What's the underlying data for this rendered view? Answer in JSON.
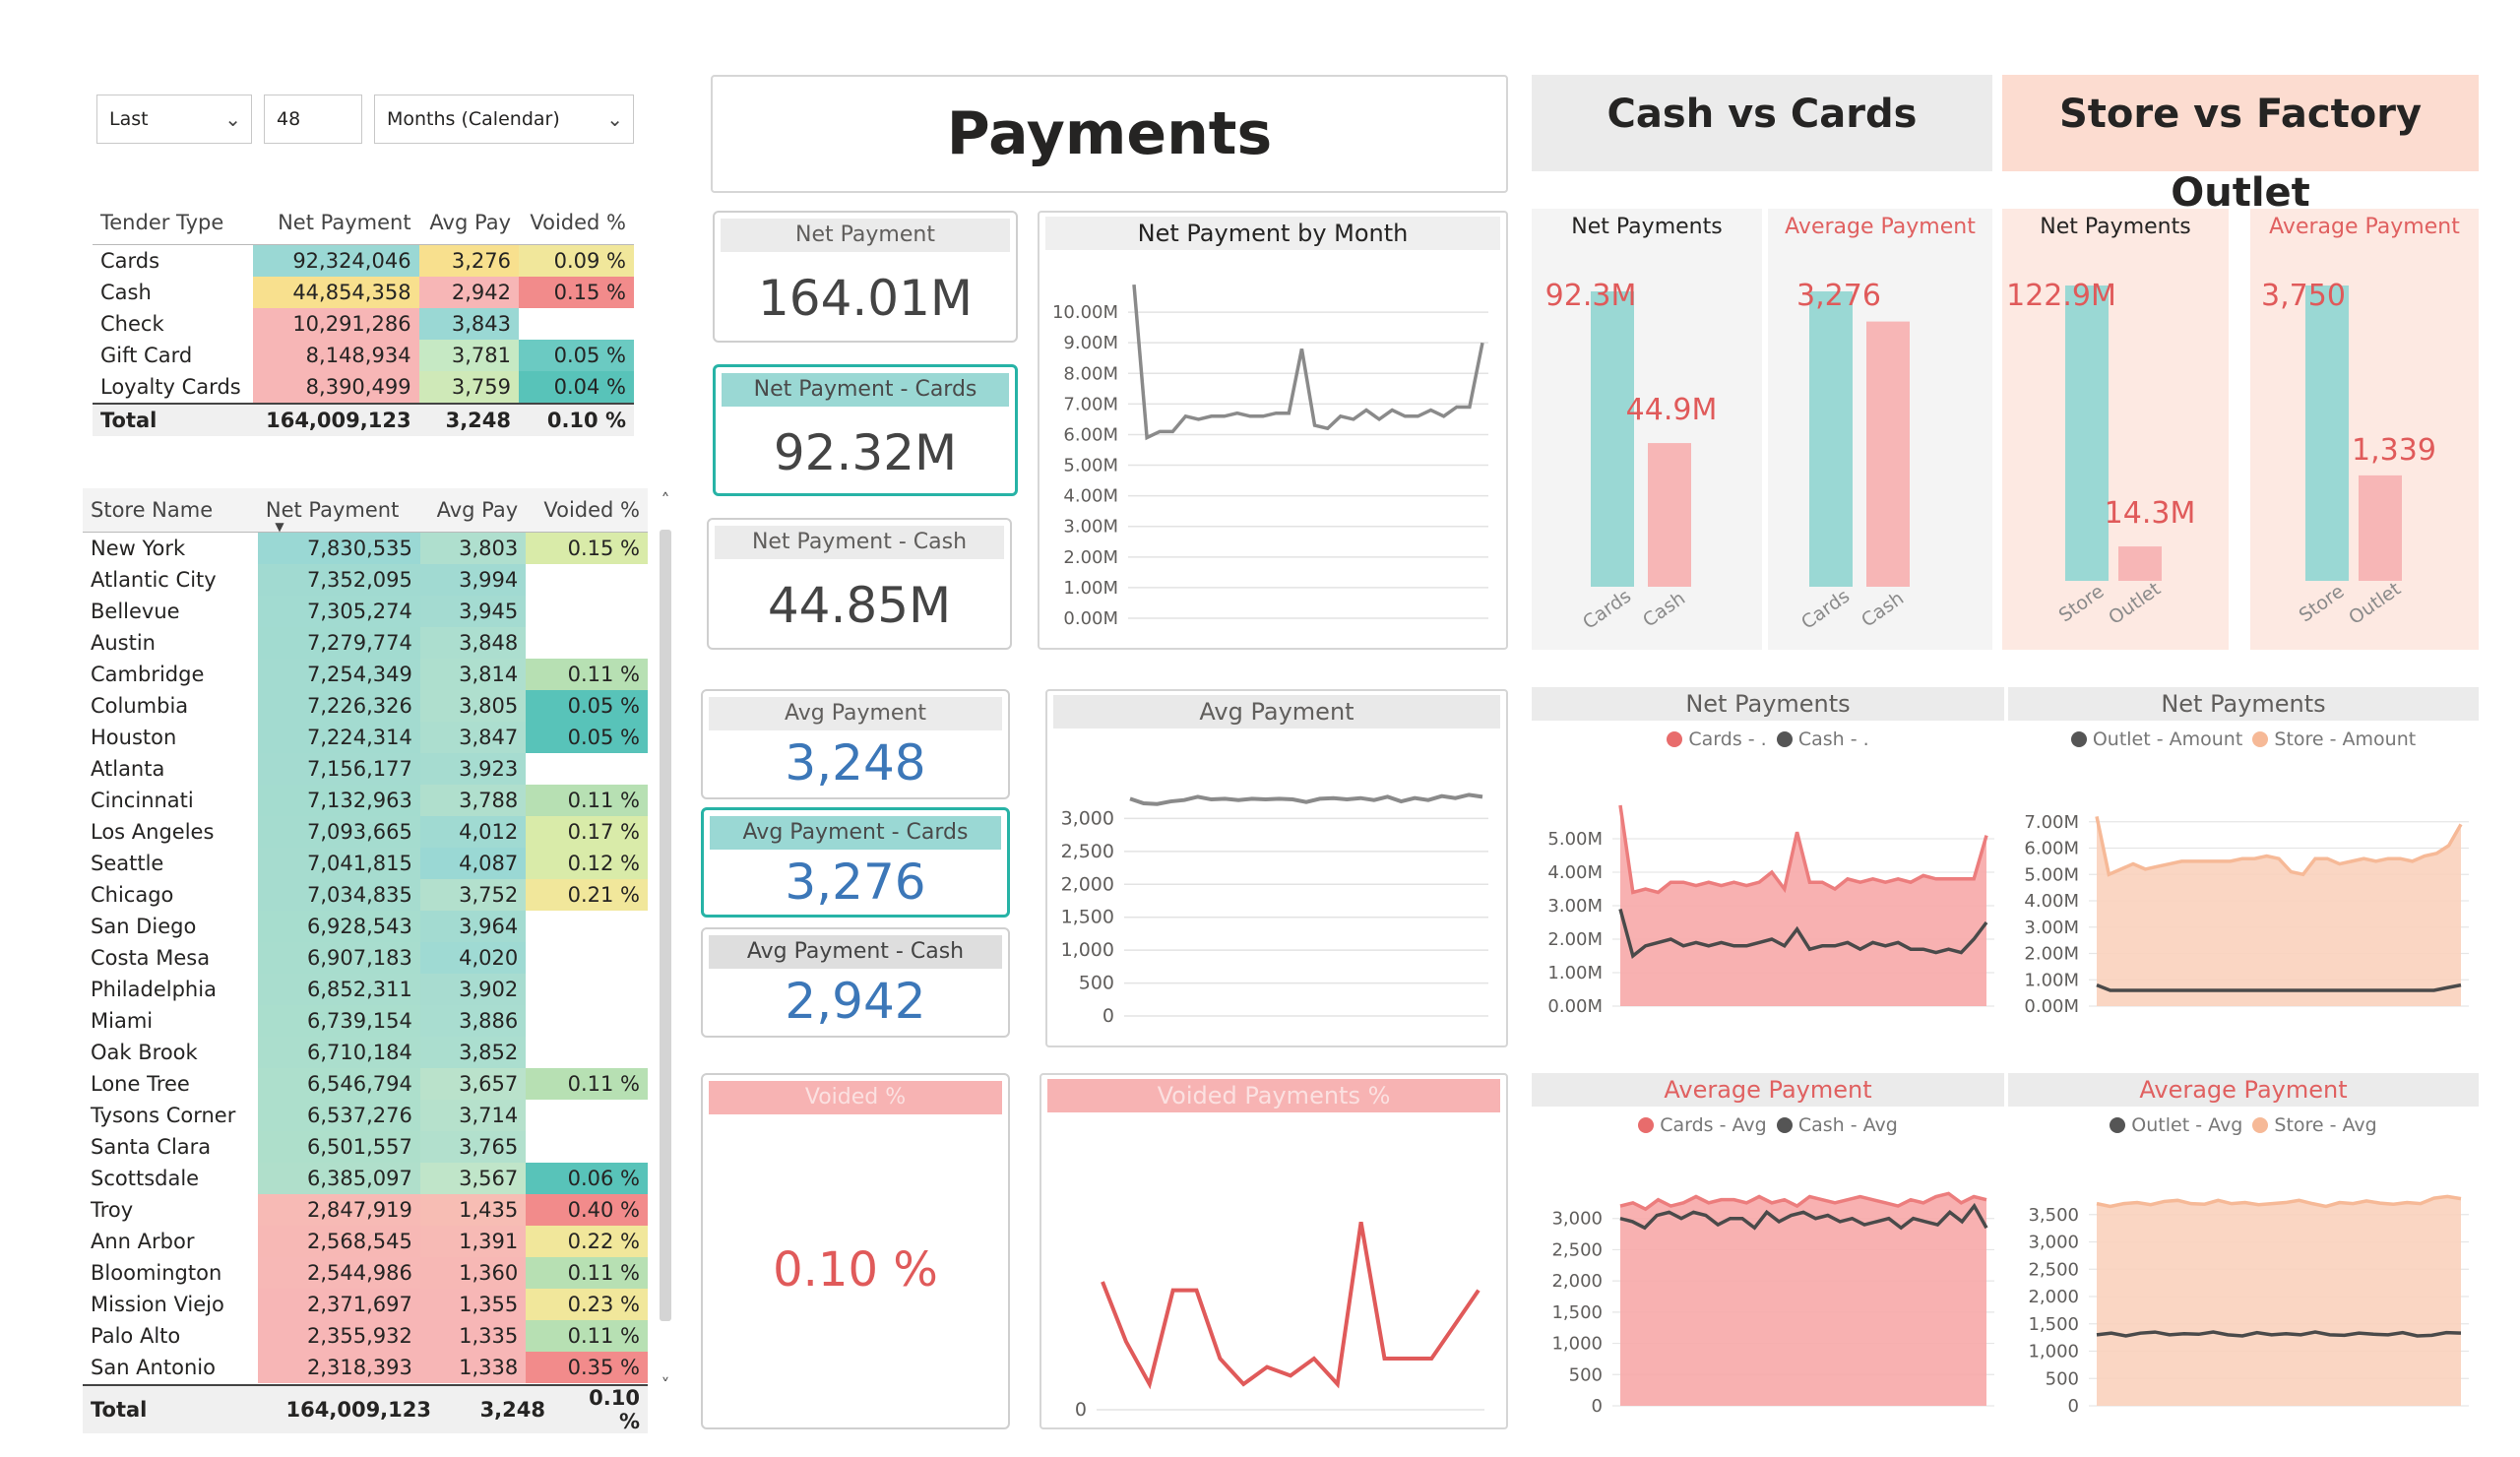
{
  "filters": {
    "period": "Last",
    "count": "48",
    "unit": "Months (Calendar)"
  },
  "title": "Payments",
  "header_cash_vs_cards": "Cash vs Cards",
  "header_store_vs_outlet": "Store vs Factory Outlet",
  "tender_table": {
    "columns": [
      "Tender Type",
      "Net Payment",
      "Avg Pay",
      "Voided %"
    ],
    "rows": [
      {
        "type": "Cards",
        "net": "92,324,046",
        "avg": "3,276",
        "voided": "0.09 %"
      },
      {
        "type": "Cash",
        "net": "44,854,358",
        "avg": "2,942",
        "voided": "0.15 %"
      },
      {
        "type": "Check",
        "net": "10,291,286",
        "avg": "3,843",
        "voided": ""
      },
      {
        "type": "Gift Card",
        "net": "8,148,934",
        "avg": "3,781",
        "voided": "0.05 %"
      },
      {
        "type": "Loyalty Cards",
        "net": "8,390,499",
        "avg": "3,759",
        "voided": "0.04 %"
      }
    ],
    "total": {
      "label": "Total",
      "net": "164,009,123",
      "avg": "3,248",
      "voided": "0.10 %"
    }
  },
  "store_table": {
    "columns": [
      "Store Name",
      "Net Payment",
      "Avg Pay",
      "Voided %"
    ],
    "rows": [
      {
        "name": "New York",
        "net": "7,830,535",
        "avg": "3,803",
        "voided": "0.15 %"
      },
      {
        "name": "Atlantic City",
        "net": "7,352,095",
        "avg": "3,994",
        "voided": ""
      },
      {
        "name": "Bellevue",
        "net": "7,305,274",
        "avg": "3,945",
        "voided": ""
      },
      {
        "name": "Austin",
        "net": "7,279,774",
        "avg": "3,848",
        "voided": ""
      },
      {
        "name": "Cambridge",
        "net": "7,254,349",
        "avg": "3,814",
        "voided": "0.11 %"
      },
      {
        "name": "Columbia",
        "net": "7,226,326",
        "avg": "3,805",
        "voided": "0.05 %"
      },
      {
        "name": "Houston",
        "net": "7,224,314",
        "avg": "3,847",
        "voided": "0.05 %"
      },
      {
        "name": "Atlanta",
        "net": "7,156,177",
        "avg": "3,923",
        "voided": ""
      },
      {
        "name": "Cincinnati",
        "net": "7,132,963",
        "avg": "3,788",
        "voided": "0.11 %"
      },
      {
        "name": "Los Angeles",
        "net": "7,093,665",
        "avg": "4,012",
        "voided": "0.17 %"
      },
      {
        "name": "Seattle",
        "net": "7,041,815",
        "avg": "4,087",
        "voided": "0.12 %"
      },
      {
        "name": "Chicago",
        "net": "7,034,835",
        "avg": "3,752",
        "voided": "0.21 %"
      },
      {
        "name": "San Diego",
        "net": "6,928,543",
        "avg": "3,964",
        "voided": ""
      },
      {
        "name": "Costa Mesa",
        "net": "6,907,183",
        "avg": "4,020",
        "voided": ""
      },
      {
        "name": "Philadelphia",
        "net": "6,852,311",
        "avg": "3,902",
        "voided": ""
      },
      {
        "name": "Miami",
        "net": "6,739,154",
        "avg": "3,886",
        "voided": ""
      },
      {
        "name": "Oak Brook",
        "net": "6,710,184",
        "avg": "3,852",
        "voided": ""
      },
      {
        "name": "Lone Tree",
        "net": "6,546,794",
        "avg": "3,657",
        "voided": "0.11 %"
      },
      {
        "name": "Tysons Corner",
        "net": "6,537,276",
        "avg": "3,714",
        "voided": ""
      },
      {
        "name": "Santa Clara",
        "net": "6,501,557",
        "avg": "3,765",
        "voided": ""
      },
      {
        "name": "Scottsdale",
        "net": "6,385,097",
        "avg": "3,567",
        "voided": "0.06 %"
      },
      {
        "name": "Troy",
        "net": "2,847,919",
        "avg": "1,435",
        "voided": "0.40 %"
      },
      {
        "name": "Ann Arbor",
        "net": "2,568,545",
        "avg": "1,391",
        "voided": "0.22 %"
      },
      {
        "name": "Bloomington",
        "net": "2,544,986",
        "avg": "1,360",
        "voided": "0.11 %"
      },
      {
        "name": "Mission Viejo",
        "net": "2,371,697",
        "avg": "1,355",
        "voided": "0.23 %"
      },
      {
        "name": "Palo Alto",
        "net": "2,355,932",
        "avg": "1,335",
        "voided": "0.11 %"
      },
      {
        "name": "San Antonio",
        "net": "2,318,393",
        "avg": "1,338",
        "voided": "0.35 %"
      }
    ],
    "total": {
      "label": "Total",
      "net": "164,009,123",
      "avg": "3,248",
      "voided": "0.10 %"
    }
  },
  "cards": {
    "net_payment": {
      "label": "Net Payment",
      "value": "164.01M"
    },
    "net_payment_cards": {
      "label": "Net Payment - Cards",
      "value": "92.32M"
    },
    "net_payment_cash": {
      "label": "Net Payment - Cash",
      "value": "44.85M"
    },
    "avg_payment": {
      "label": "Avg Payment",
      "value": "3,248"
    },
    "avg_payment_cards": {
      "label": "Avg Payment - Cards",
      "value": "3,276"
    },
    "avg_payment_cash": {
      "label": "Avg Payment - Cash",
      "value": "2,942"
    },
    "voided": {
      "label": "Voided %",
      "value": "0.10 %"
    }
  },
  "colors": {
    "teal": "#9ad8d4",
    "pink": "#f7b6b6",
    "red": "#e05a5a",
    "peach": "#f8c9ad",
    "grey": "#555555"
  },
  "chart_data": [
    {
      "type": "line",
      "title": "Net Payment by Month",
      "ylim": [
        0,
        10000000
      ],
      "yticks": [
        "0.00M",
        "1.00M",
        "2.00M",
        "3.00M",
        "4.00M",
        "5.00M",
        "6.00M",
        "7.00M",
        "8.00M",
        "9.00M",
        "10.00M"
      ],
      "series": [
        {
          "values": [
            10.9,
            5.9,
            6.1,
            6.1,
            6.6,
            6.5,
            6.6,
            6.6,
            6.7,
            6.6,
            6.6,
            6.7,
            6.7,
            8.8,
            6.3,
            6.2,
            6.6,
            6.5,
            6.8,
            6.5,
            6.8,
            6.6,
            6.6,
            6.8,
            6.6,
            6.9,
            6.9,
            9.0
          ]
        }
      ]
    },
    {
      "type": "line",
      "title": "Avg Payment",
      "ylim": [
        0,
        3500
      ],
      "yticks": [
        "0",
        "500",
        "1,000",
        "1,500",
        "2,000",
        "2,500",
        "3,000"
      ],
      "series": [
        {
          "values": [
            3300,
            3230,
            3220,
            3260,
            3280,
            3330,
            3290,
            3300,
            3280,
            3300,
            3290,
            3300,
            3290,
            3250,
            3300,
            3310,
            3290,
            3310,
            3280,
            3330,
            3260,
            3310,
            3280,
            3340,
            3310,
            3360,
            3330
          ]
        }
      ]
    },
    {
      "type": "line",
      "title": "Voided Payments %",
      "ylim": [
        0,
        0.3
      ],
      "yticks": [
        "0"
      ],
      "series": [
        {
          "values": [
            0.15,
            0.08,
            0.03,
            0.14,
            0.14,
            0.06,
            0.03,
            0.05,
            0.04,
            0.06,
            0.03,
            0.22,
            0.06,
            0.06,
            0.06,
            0.1,
            0.14
          ]
        }
      ]
    },
    {
      "type": "bar",
      "title": "Net Payments",
      "categories": [
        "Cards",
        "Cash"
      ],
      "values": [
        92.3,
        44.9
      ],
      "labels": [
        "92.3M",
        "44.9M"
      ]
    },
    {
      "type": "bar",
      "title": "Average Payment",
      "categories": [
        "Cards",
        "Cash"
      ],
      "values": [
        3276,
        2942
      ],
      "labels": [
        "3,276",
        ""
      ]
    },
    {
      "type": "bar",
      "title": "Net Payments",
      "categories": [
        "Store",
        "Outlet"
      ],
      "values": [
        122.9,
        14.3
      ],
      "labels": [
        "122.9M",
        "14.3M"
      ]
    },
    {
      "type": "bar",
      "title": "Average Payment",
      "categories": [
        "Store",
        "Outlet"
      ],
      "values": [
        3750,
        1339
      ],
      "labels": [
        "3,750",
        "1,339"
      ]
    },
    {
      "type": "area",
      "title": "Net Payments",
      "ylim": [
        0,
        6000000
      ],
      "yticks": [
        "0.00M",
        "1.00M",
        "2.00M",
        "3.00M",
        "4.00M",
        "5.00M"
      ],
      "series": [
        {
          "name": "Cards - .",
          "values": [
            6.0,
            3.4,
            3.5,
            3.4,
            3.7,
            3.7,
            3.6,
            3.7,
            3.6,
            3.7,
            3.6,
            3.7,
            4.0,
            3.5,
            5.2,
            3.7,
            3.7,
            3.5,
            3.8,
            3.7,
            3.8,
            3.7,
            3.8,
            3.7,
            3.9,
            3.8,
            3.8,
            3.8,
            3.8,
            5.1
          ]
        },
        {
          "name": "Cash - .",
          "values": [
            2.9,
            1.5,
            1.8,
            1.9,
            2.0,
            1.8,
            1.9,
            1.8,
            1.9,
            1.8,
            1.8,
            1.9,
            2.0,
            1.8,
            2.3,
            1.7,
            1.8,
            1.8,
            1.9,
            1.7,
            1.9,
            1.8,
            1.9,
            1.7,
            1.7,
            1.6,
            1.7,
            1.6,
            2.0,
            2.5
          ]
        }
      ]
    },
    {
      "type": "area",
      "title": "Net Payments",
      "ylim": [
        0,
        8000000
      ],
      "yticks": [
        "0.00M",
        "1.00M",
        "2.00M",
        "3.00M",
        "4.00M",
        "5.00M",
        "6.00M",
        "7.00M"
      ],
      "series": [
        {
          "name": "Outlet - Amount",
          "values": [
            0.8,
            0.6,
            0.6,
            0.6,
            0.6,
            0.6,
            0.6,
            0.6,
            0.6,
            0.6,
            0.6,
            0.6,
            0.6,
            0.6,
            0.6,
            0.6,
            0.6,
            0.6,
            0.6,
            0.6,
            0.6,
            0.6,
            0.6,
            0.6,
            0.6,
            0.6,
            0.7,
            0.8
          ]
        },
        {
          "name": "Store - Amount",
          "values": [
            7.2,
            5.0,
            5.2,
            5.4,
            5.2,
            5.3,
            5.4,
            5.5,
            5.5,
            5.5,
            5.5,
            5.5,
            5.6,
            5.6,
            5.7,
            5.6,
            5.1,
            5.0,
            5.6,
            5.6,
            5.4,
            5.5,
            5.6,
            5.5,
            5.6,
            5.6,
            5.5,
            5.7,
            5.8,
            6.1,
            6.9
          ]
        }
      ]
    },
    {
      "type": "area",
      "title": "Average Payment",
      "ylim": [
        0,
        3500
      ],
      "yticks": [
        "0",
        "500",
        "1,000",
        "1,500",
        "2,000",
        "2,500",
        "3,000"
      ],
      "series": [
        {
          "name": "Cards - Avg",
          "values": [
            3200,
            3250,
            3150,
            3300,
            3200,
            3250,
            3350,
            3250,
            3300,
            3300,
            3250,
            3350,
            3250,
            3300,
            3200,
            3350,
            3300,
            3250,
            3300,
            3350,
            3300,
            3250,
            3200,
            3300,
            3250,
            3350,
            3400,
            3250,
            3350,
            3300
          ]
        },
        {
          "name": "Cash - Avg",
          "values": [
            3000,
            2950,
            2850,
            3050,
            3100,
            3000,
            3100,
            3050,
            2900,
            3000,
            3000,
            2850,
            3100,
            2950,
            3050,
            3100,
            3000,
            3050,
            2950,
            3000,
            2900,
            2950,
            3000,
            2850,
            3000,
            2950,
            2900,
            3100,
            2950,
            3200,
            2850
          ]
        }
      ]
    },
    {
      "type": "area",
      "title": "Average Payment",
      "ylim": [
        0,
        4000
      ],
      "yticks": [
        "0",
        "500",
        "1,000",
        "1,500",
        "2,000",
        "2,500",
        "3,000",
        "3,500"
      ],
      "series": [
        {
          "name": "Outlet - Avg",
          "values": [
            1300,
            1330,
            1280,
            1330,
            1350,
            1300,
            1320,
            1310,
            1350,
            1300,
            1280,
            1340,
            1300,
            1320,
            1300,
            1350,
            1300,
            1290,
            1330,
            1310,
            1300,
            1340,
            1280,
            1290,
            1340,
            1330
          ]
        },
        {
          "name": "Store - Avg",
          "values": [
            3700,
            3650,
            3700,
            3720,
            3680,
            3740,
            3760,
            3700,
            3690,
            3760,
            3700,
            3720,
            3680,
            3700,
            3720,
            3760,
            3700,
            3650,
            3720,
            3700,
            3750,
            3710,
            3690,
            3720,
            3700,
            3800,
            3830,
            3790
          ]
        }
      ]
    }
  ]
}
